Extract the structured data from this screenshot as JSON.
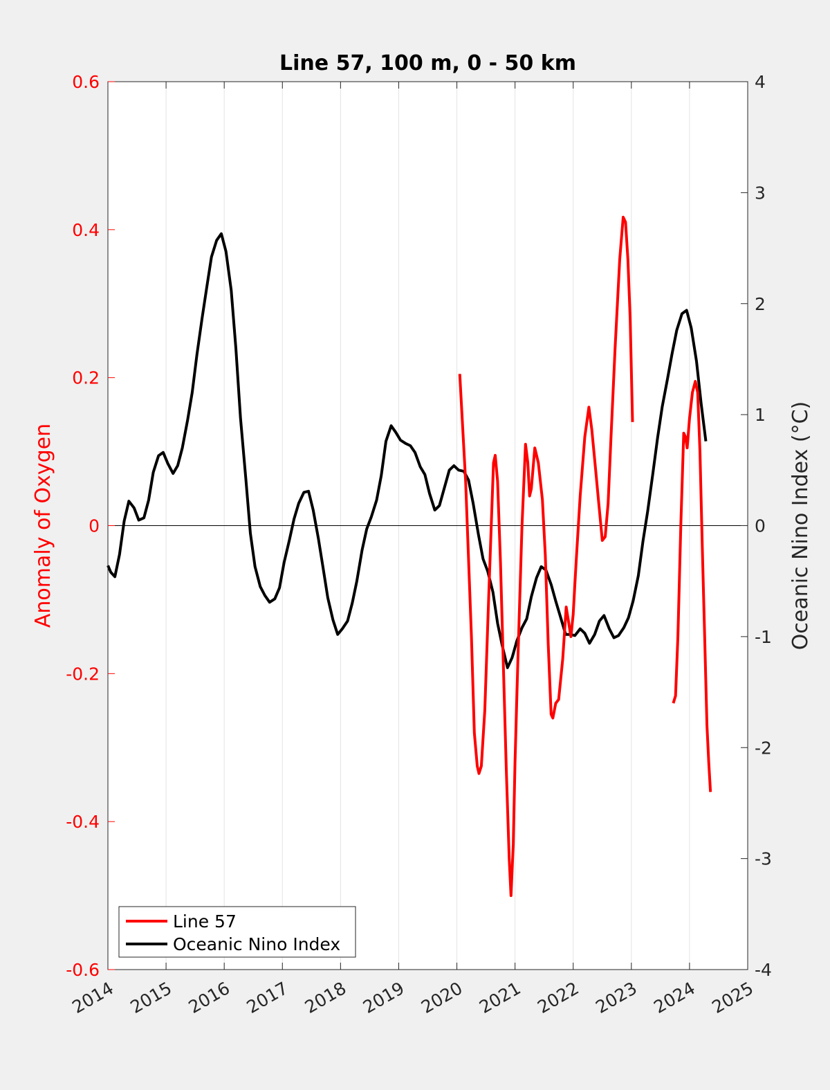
{
  "chart_data": {
    "type": "line",
    "title": "Line 57, 100 m, 0 - 50 km",
    "ylabel_left": "Anomaly of Oxygen",
    "ylabel_right": "Oceanic Nino Index (°C)",
    "xlim": [
      2014,
      2025
    ],
    "ylim_left": [
      -0.6,
      0.6
    ],
    "ylim_right": [
      -4,
      4
    ],
    "x_ticks": [
      "2014",
      "2015",
      "2016",
      "2017",
      "2018",
      "2019",
      "2020",
      "2021",
      "2022",
      "2023",
      "2024",
      "2025"
    ],
    "y_ticks_left": [
      "0.6",
      "0.4",
      "0.2",
      "0",
      "-0.2",
      "-0.4",
      "-0.6"
    ],
    "y_ticks_right": [
      "4",
      "3",
      "2",
      "1",
      "0",
      "-1",
      "-2",
      "-3",
      "-4"
    ],
    "grid": "vertical",
    "zero_line": true,
    "legend": {
      "position": "bottom-left",
      "entries": [
        "Line 57",
        "Oceanic Nino Index"
      ]
    },
    "colors": {
      "line57": "#ff0000",
      "oni": "#000000",
      "left_axis": "#ff0000",
      "right_axis": "#262626"
    },
    "series": [
      {
        "name": "Line 57",
        "axis": "left",
        "color": "#ff0000",
        "segments": [
          [
            [
              2020.05,
              0.205
            ],
            [
              2020.15,
              0.06
            ],
            [
              2020.25,
              -0.15
            ],
            [
              2020.3,
              -0.28
            ],
            [
              2020.35,
              -0.325
            ],
            [
              2020.38,
              -0.335
            ],
            [
              2020.42,
              -0.325
            ],
            [
              2020.48,
              -0.25
            ],
            [
              2020.55,
              -0.09
            ],
            [
              2020.6,
              0.02
            ],
            [
              2020.63,
              0.085
            ],
            [
              2020.66,
              0.095
            ],
            [
              2020.7,
              0.06
            ],
            [
              2020.75,
              -0.05
            ],
            [
              2020.8,
              -0.19
            ],
            [
              2020.85,
              -0.33
            ],
            [
              2020.9,
              -0.45
            ],
            [
              2020.93,
              -0.5
            ],
            [
              2020.97,
              -0.43
            ],
            [
              2021.0,
              -0.32
            ],
            [
              2021.05,
              -0.18
            ],
            [
              2021.12,
              0.0
            ],
            [
              2021.18,
              0.11
            ],
            [
              2021.22,
              0.085
            ],
            [
              2021.25,
              0.04
            ],
            [
              2021.28,
              0.05
            ],
            [
              2021.34,
              0.105
            ],
            [
              2021.4,
              0.085
            ],
            [
              2021.47,
              0.035
            ],
            [
              2021.52,
              -0.04
            ],
            [
              2021.57,
              -0.16
            ],
            [
              2021.62,
              -0.255
            ],
            [
              2021.65,
              -0.26
            ],
            [
              2021.7,
              -0.24
            ],
            [
              2021.75,
              -0.235
            ],
            [
              2021.82,
              -0.18
            ],
            [
              2021.88,
              -0.11
            ],
            [
              2021.92,
              -0.13
            ],
            [
              2021.96,
              -0.15
            ],
            [
              2022.0,
              -0.12
            ],
            [
              2022.05,
              -0.05
            ],
            [
              2022.12,
              0.04
            ],
            [
              2022.2,
              0.12
            ],
            [
              2022.27,
              0.16
            ],
            [
              2022.32,
              0.13
            ],
            [
              2022.38,
              0.08
            ],
            [
              2022.44,
              0.03
            ],
            [
              2022.5,
              -0.02
            ],
            [
              2022.55,
              -0.015
            ],
            [
              2022.6,
              0.03
            ],
            [
              2022.65,
              0.12
            ],
            [
              2022.72,
              0.24
            ],
            [
              2022.8,
              0.36
            ],
            [
              2022.86,
              0.417
            ],
            [
              2022.9,
              0.41
            ],
            [
              2022.94,
              0.36
            ],
            [
              2022.98,
              0.28
            ],
            [
              2023.02,
              0.14
            ]
          ],
          [
            [
              2023.72,
              -0.24
            ],
            [
              2023.76,
              -0.23
            ],
            [
              2023.8,
              -0.15
            ],
            [
              2023.85,
              0.0
            ],
            [
              2023.9,
              0.125
            ],
            [
              2023.93,
              0.12
            ],
            [
              2023.96,
              0.105
            ],
            [
              2024.0,
              0.145
            ],
            [
              2024.05,
              0.18
            ],
            [
              2024.1,
              0.195
            ],
            [
              2024.14,
              0.18
            ],
            [
              2024.18,
              0.1
            ],
            [
              2024.22,
              -0.03
            ],
            [
              2024.26,
              -0.15
            ],
            [
              2024.3,
              -0.27
            ],
            [
              2024.33,
              -0.32
            ],
            [
              2024.36,
              -0.36
            ]
          ]
        ]
      },
      {
        "name": "Oceanic Nino Index",
        "axis": "right",
        "color": "#000000",
        "segments": [
          [
            [
              2014.0,
              -0.36
            ],
            [
              2014.05,
              -0.42
            ],
            [
              2014.12,
              -0.46
            ],
            [
              2014.2,
              -0.26
            ],
            [
              2014.28,
              0.04
            ],
            [
              2014.36,
              0.22
            ],
            [
              2014.45,
              0.16
            ],
            [
              2014.53,
              0.05
            ],
            [
              2014.62,
              0.07
            ],
            [
              2014.7,
              0.23
            ],
            [
              2014.78,
              0.48
            ],
            [
              2014.87,
              0.63
            ],
            [
              2014.95,
              0.66
            ],
            [
              2015.03,
              0.56
            ],
            [
              2015.12,
              0.47
            ],
            [
              2015.2,
              0.54
            ],
            [
              2015.28,
              0.7
            ],
            [
              2015.37,
              0.95
            ],
            [
              2015.45,
              1.2
            ],
            [
              2015.53,
              1.54
            ],
            [
              2015.62,
              1.87
            ],
            [
              2015.7,
              2.15
            ],
            [
              2015.78,
              2.42
            ],
            [
              2015.87,
              2.57
            ],
            [
              2015.95,
              2.63
            ],
            [
              2016.03,
              2.47
            ],
            [
              2016.12,
              2.12
            ],
            [
              2016.2,
              1.6
            ],
            [
              2016.28,
              0.97
            ],
            [
              2016.37,
              0.43
            ],
            [
              2016.45,
              -0.07
            ],
            [
              2016.53,
              -0.37
            ],
            [
              2016.62,
              -0.55
            ],
            [
              2016.7,
              -0.63
            ],
            [
              2016.78,
              -0.69
            ],
            [
              2016.87,
              -0.66
            ],
            [
              2016.95,
              -0.56
            ],
            [
              2017.03,
              -0.33
            ],
            [
              2017.12,
              -0.13
            ],
            [
              2017.2,
              0.06
            ],
            [
              2017.28,
              0.2
            ],
            [
              2017.37,
              0.3
            ],
            [
              2017.45,
              0.31
            ],
            [
              2017.53,
              0.14
            ],
            [
              2017.62,
              -0.12
            ],
            [
              2017.7,
              -0.38
            ],
            [
              2017.78,
              -0.65
            ],
            [
              2017.87,
              -0.85
            ],
            [
              2017.95,
              -0.98
            ],
            [
              2018.03,
              -0.93
            ],
            [
              2018.12,
              -0.86
            ],
            [
              2018.2,
              -0.7
            ],
            [
              2018.28,
              -0.5
            ],
            [
              2018.37,
              -0.22
            ],
            [
              2018.45,
              -0.03
            ],
            [
              2018.53,
              0.08
            ],
            [
              2018.62,
              0.23
            ],
            [
              2018.7,
              0.45
            ],
            [
              2018.78,
              0.76
            ],
            [
              2018.87,
              0.9
            ],
            [
              2018.95,
              0.84
            ],
            [
              2019.03,
              0.77
            ],
            [
              2019.12,
              0.74
            ],
            [
              2019.2,
              0.72
            ],
            [
              2019.28,
              0.66
            ],
            [
              2019.37,
              0.53
            ],
            [
              2019.45,
              0.46
            ],
            [
              2019.53,
              0.29
            ],
            [
              2019.62,
              0.14
            ],
            [
              2019.7,
              0.18
            ],
            [
              2019.78,
              0.33
            ],
            [
              2019.87,
              0.5
            ],
            [
              2019.95,
              0.54
            ],
            [
              2020.03,
              0.5
            ],
            [
              2020.12,
              0.49
            ],
            [
              2020.2,
              0.41
            ],
            [
              2020.28,
              0.2
            ],
            [
              2020.37,
              -0.08
            ],
            [
              2020.45,
              -0.3
            ],
            [
              2020.53,
              -0.41
            ],
            [
              2020.62,
              -0.6
            ],
            [
              2020.7,
              -0.88
            ],
            [
              2020.78,
              -1.08
            ],
            [
              2020.87,
              -1.28
            ],
            [
              2020.95,
              -1.19
            ],
            [
              2021.03,
              -1.04
            ],
            [
              2021.12,
              -0.92
            ],
            [
              2021.2,
              -0.84
            ],
            [
              2021.28,
              -0.64
            ],
            [
              2021.37,
              -0.47
            ],
            [
              2021.45,
              -0.37
            ],
            [
              2021.53,
              -0.4
            ],
            [
              2021.62,
              -0.53
            ],
            [
              2021.7,
              -0.68
            ],
            [
              2021.78,
              -0.82
            ],
            [
              2021.87,
              -0.98
            ],
            [
              2021.95,
              -0.98
            ],
            [
              2022.03,
              -0.99
            ],
            [
              2022.12,
              -0.93
            ],
            [
              2022.2,
              -0.97
            ],
            [
              2022.28,
              -1.06
            ],
            [
              2022.37,
              -0.98
            ],
            [
              2022.45,
              -0.86
            ],
            [
              2022.53,
              -0.81
            ],
            [
              2022.62,
              -0.93
            ],
            [
              2022.7,
              -1.01
            ],
            [
              2022.78,
              -0.99
            ],
            [
              2022.87,
              -0.92
            ],
            [
              2022.95,
              -0.83
            ],
            [
              2023.03,
              -0.68
            ],
            [
              2023.12,
              -0.45
            ],
            [
              2023.2,
              -0.14
            ],
            [
              2023.28,
              0.13
            ],
            [
              2023.37,
              0.47
            ],
            [
              2023.45,
              0.79
            ],
            [
              2023.53,
              1.07
            ],
            [
              2023.62,
              1.32
            ],
            [
              2023.7,
              1.55
            ],
            [
              2023.78,
              1.76
            ],
            [
              2023.87,
              1.91
            ],
            [
              2023.95,
              1.94
            ],
            [
              2024.03,
              1.78
            ],
            [
              2024.12,
              1.48
            ],
            [
              2024.2,
              1.1
            ],
            [
              2024.28,
              0.76
            ]
          ]
        ]
      }
    ]
  }
}
